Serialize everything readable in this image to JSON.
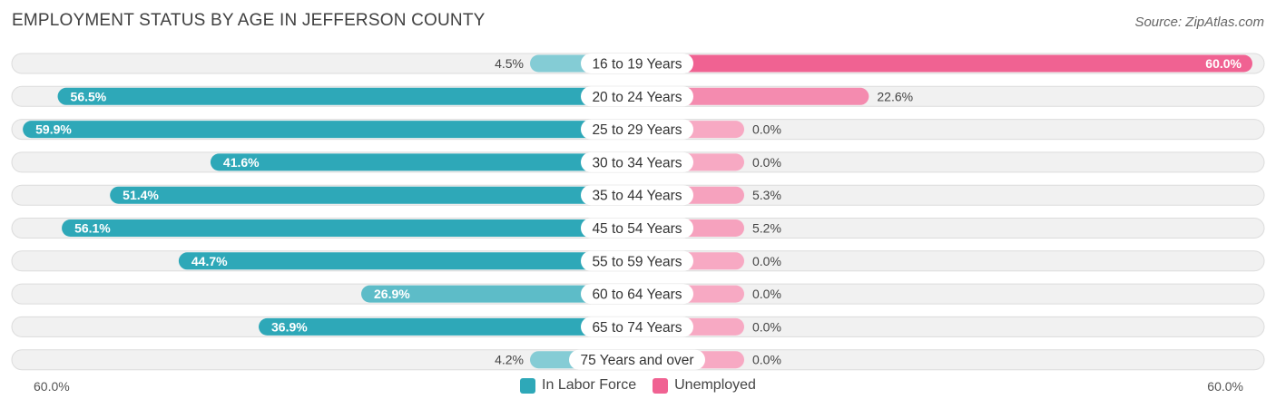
{
  "chart_data": {
    "type": "bar",
    "title": "EMPLOYMENT STATUS BY AGE IN JEFFERSON COUNTY",
    "source": "Source: ZipAtlas.com",
    "categories": [
      "16 to 19 Years",
      "20 to 24 Years",
      "25 to 29 Years",
      "30 to 34 Years",
      "35 to 44 Years",
      "45 to 54 Years",
      "55 to 59 Years",
      "60 to 64 Years",
      "65 to 74 Years",
      "75 Years and over"
    ],
    "series": [
      {
        "name": "In Labor Force",
        "color": "#2ea8b8",
        "values": [
          4.5,
          56.5,
          59.9,
          41.6,
          51.4,
          56.1,
          44.7,
          26.9,
          36.9,
          4.2
        ],
        "labels": [
          "4.5%",
          "56.5%",
          "59.9%",
          "41.6%",
          "51.4%",
          "56.1%",
          "44.7%",
          "26.9%",
          "36.9%",
          "4.2%"
        ]
      },
      {
        "name": "Unemployed",
        "color": "#f06292",
        "values": [
          60.0,
          22.6,
          0.0,
          0.0,
          5.3,
          5.2,
          0.0,
          0.0,
          0.0,
          0.0
        ],
        "labels": [
          "60.0%",
          "22.6%",
          "0.0%",
          "0.0%",
          "5.3%",
          "5.2%",
          "0.0%",
          "0.0%",
          "0.0%",
          "0.0%"
        ]
      }
    ],
    "xlim": [
      -60,
      60
    ],
    "axis_left_label": "60.0%",
    "axis_right_label": "60.0%",
    "legend_position": "bottom-center"
  }
}
